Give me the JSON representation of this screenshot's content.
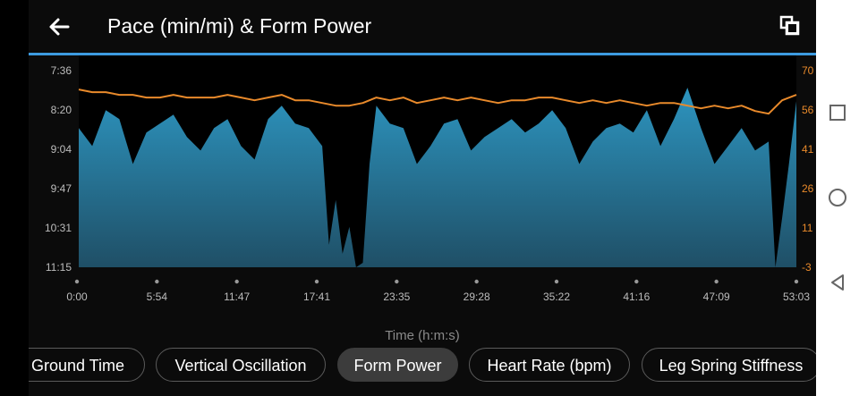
{
  "header": {
    "title": "Pace (min/mi) & Form Power",
    "back_icon": "arrow-left-icon",
    "expand_icon": "window-restore-icon"
  },
  "chart_data": {
    "type": "area+line",
    "xlabel": "Time (h:m:s)",
    "x_ticks": [
      "0:00",
      "5:54",
      "11:47",
      "17:41",
      "23:35",
      "29:28",
      "35:22",
      "41:16",
      "47:09",
      "53:03"
    ],
    "x_range_seconds": [
      0,
      3183
    ],
    "left_axis": {
      "ticks": [
        "7:36",
        "8:20",
        "9:04",
        "9:47",
        "10:31",
        "11:15"
      ],
      "range_sec_per_mile": [
        456,
        675
      ],
      "inverted": true
    },
    "right_axis": {
      "ticks": [
        "70",
        "56",
        "41",
        "26",
        "11",
        "-3"
      ],
      "range": [
        -3,
        70
      ]
    },
    "series": [
      {
        "axis": "left",
        "kind": "area",
        "color": "#2a86ad",
        "x_min": [
          0,
          60,
          120,
          180,
          240,
          300,
          360,
          420,
          480,
          540,
          600,
          660,
          720,
          780,
          840,
          900,
          960,
          1020,
          1080,
          1110,
          1140,
          1170,
          1200,
          1230,
          1260,
          1290,
          1320,
          1380,
          1440,
          1500,
          1560,
          1620,
          1680,
          1740,
          1800,
          1860,
          1920,
          1980,
          2040,
          2100,
          2160,
          2220,
          2280,
          2340,
          2400,
          2460,
          2520,
          2580,
          2640,
          2700,
          2760,
          2820,
          2880,
          2940,
          3000,
          3060,
          3090,
          3120,
          3150,
          3183
        ],
        "pace_sec_per_mile": [
          520,
          540,
          500,
          510,
          560,
          525,
          515,
          505,
          530,
          545,
          520,
          510,
          540,
          555,
          510,
          495,
          515,
          520,
          540,
          650,
          600,
          660,
          630,
          675,
          670,
          560,
          495,
          515,
          520,
          560,
          540,
          515,
          510,
          545,
          530,
          520,
          510,
          525,
          515,
          500,
          520,
          560,
          535,
          520,
          515,
          525,
          500,
          540,
          510,
          475,
          520,
          560,
          540,
          520,
          545,
          535,
          675,
          620,
          560,
          490
        ],
        "detail": "sample trace: pace every ~minute; ~8:20-9:00 with deep drops near 17:41-21:00 and 51:00-52:00"
      },
      {
        "axis": "right",
        "kind": "line",
        "color": "#e98a2b",
        "x_min": [
          0,
          60,
          120,
          180,
          240,
          300,
          360,
          420,
          480,
          540,
          600,
          660,
          720,
          780,
          840,
          900,
          960,
          1020,
          1080,
          1140,
          1200,
          1260,
          1320,
          1380,
          1440,
          1500,
          1560,
          1620,
          1680,
          1740,
          1800,
          1860,
          1920,
          1980,
          2040,
          2100,
          2160,
          2220,
          2280,
          2340,
          2400,
          2460,
          2520,
          2580,
          2640,
          2700,
          2760,
          2820,
          2880,
          2940,
          3000,
          3060,
          3120,
          3183
        ],
        "form_power": [
          63,
          62,
          62,
          61,
          61,
          60,
          60,
          61,
          60,
          60,
          60,
          61,
          60,
          59,
          60,
          61,
          59,
          59,
          58,
          57,
          57,
          58,
          60,
          59,
          60,
          58,
          59,
          60,
          59,
          60,
          59,
          58,
          59,
          59,
          60,
          60,
          59,
          58,
          59,
          58,
          59,
          58,
          57,
          58,
          58,
          57,
          56,
          57,
          56,
          57,
          55,
          54,
          59,
          61
        ],
        "detail": "sample trace: form power around 57-62 W"
      }
    ],
    "colors": {
      "pace_area_top": "#2d95c0",
      "pace_area_bottom": "#1f4f66",
      "power_line": "#e98a2b",
      "accent": "#3d9be0"
    }
  },
  "metric_chips": [
    {
      "label": "Ground Time",
      "active": false
    },
    {
      "label": "Vertical Oscillation",
      "active": false
    },
    {
      "label": "Form Power",
      "active": true
    },
    {
      "label": "Heart Rate (bpm)",
      "active": false
    },
    {
      "label": "Leg Spring Stiffness",
      "active": false
    }
  ],
  "navbar": {
    "buttons": [
      "square-icon",
      "circle-icon",
      "triangle-back-icon"
    ]
  }
}
